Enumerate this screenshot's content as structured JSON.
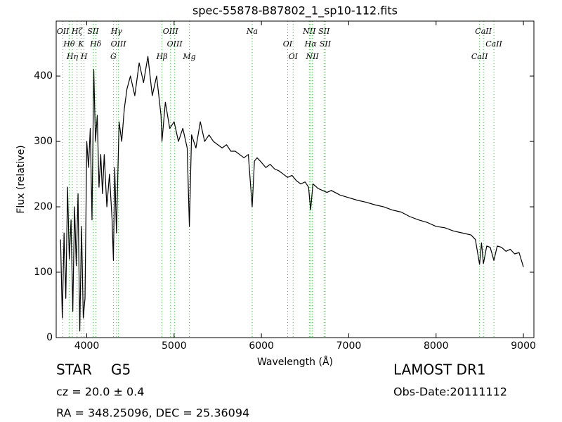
{
  "chart_data": {
    "type": "line",
    "title": "spec-55878-B87802_1_sp10-112.fits",
    "xlabel": "Wavelength (Å)",
    "ylabel": "Flux (relative)",
    "xlim": [
      3650,
      9120
    ],
    "ylim": [
      0,
      484
    ],
    "xticks": [
      4000,
      5000,
      6000,
      7000,
      8000,
      9000
    ],
    "yticks": [
      0,
      100,
      200,
      300,
      400
    ],
    "line_color": "#4caf50",
    "lines": [
      {
        "x": 3727,
        "label": "OII"
      },
      {
        "x": 3798,
        "label": "Hθ"
      },
      {
        "x": 3835,
        "label": "Hη"
      },
      {
        "x": 3889,
        "label": "Hζ"
      },
      {
        "x": 3934,
        "label": "K"
      },
      {
        "x": 3969,
        "label": "H"
      },
      {
        "x": 4072,
        "label": "SII"
      },
      {
        "x": 4102,
        "label": "Hδ"
      },
      {
        "x": 4305,
        "label": "G"
      },
      {
        "x": 4340,
        "label": "Hγ"
      },
      {
        "x": 4363,
        "label": "OIII"
      },
      {
        "x": 4861,
        "label": "Hβ"
      },
      {
        "x": 4959,
        "label": "OIII"
      },
      {
        "x": 5007,
        "label": "OIII"
      },
      {
        "x": 5175,
        "label": "Mg"
      },
      {
        "x": 5894,
        "label": "Na"
      },
      {
        "x": 6300,
        "label": "OI"
      },
      {
        "x": 6363,
        "label": "OI"
      },
      {
        "x": 6548,
        "label": "NII"
      },
      {
        "x": 6563,
        "label": "Hα"
      },
      {
        "x": 6583,
        "label": "NII"
      },
      {
        "x": 6717,
        "label": "SII"
      },
      {
        "x": 6731,
        "label": "SII"
      },
      {
        "x": 8498,
        "label": "CaII"
      },
      {
        "x": 8542,
        "label": "CaII"
      },
      {
        "x": 8662,
        "label": "CaII"
      }
    ],
    "x": [
      3700,
      3720,
      3740,
      3760,
      3780,
      3800,
      3820,
      3840,
      3860,
      3880,
      3900,
      3920,
      3940,
      3960,
      3980,
      4000,
      4020,
      4040,
      4060,
      4080,
      4100,
      4120,
      4140,
      4160,
      4180,
      4200,
      4230,
      4260,
      4290,
      4305,
      4320,
      4340,
      4370,
      4400,
      4430,
      4460,
      4500,
      4550,
      4600,
      4650,
      4700,
      4750,
      4800,
      4850,
      4861,
      4900,
      4950,
      5000,
      5050,
      5100,
      5150,
      5175,
      5200,
      5250,
      5300,
      5350,
      5400,
      5450,
      5500,
      5550,
      5600,
      5650,
      5700,
      5750,
      5800,
      5850,
      5894,
      5920,
      5950,
      6000,
      6050,
      6100,
      6150,
      6200,
      6250,
      6300,
      6350,
      6400,
      6450,
      6500,
      6540,
      6563,
      6590,
      6650,
      6700,
      6750,
      6800,
      6900,
      7000,
      7100,
      7200,
      7300,
      7400,
      7500,
      7600,
      7700,
      7800,
      7900,
      8000,
      8100,
      8200,
      8300,
      8400,
      8450,
      8498,
      8520,
      8542,
      8580,
      8620,
      8662,
      8700,
      8750,
      8800,
      8850,
      8900,
      8950,
      9000
    ],
    "series": [
      {
        "color": "#000000",
        "values": [
          150,
          30,
          160,
          60,
          230,
          120,
          180,
          40,
          200,
          110,
          220,
          10,
          170,
          30,
          60,
          300,
          260,
          320,
          180,
          410,
          300,
          340,
          230,
          280,
          220,
          280,
          200,
          250,
          180,
          118,
          260,
          160,
          330,
          300,
          350,
          380,
          400,
          370,
          420,
          390,
          430,
          370,
          400,
          340,
          300,
          360,
          320,
          330,
          300,
          320,
          290,
          170,
          310,
          290,
          330,
          300,
          310,
          300,
          295,
          290,
          295,
          285,
          285,
          280,
          275,
          280,
          200,
          270,
          275,
          268,
          260,
          265,
          258,
          255,
          250,
          245,
          248,
          240,
          235,
          238,
          230,
          195,
          235,
          228,
          225,
          222,
          225,
          218,
          214,
          210,
          207,
          203,
          200,
          195,
          192,
          185,
          180,
          176,
          170,
          168,
          163,
          160,
          157,
          150,
          112,
          145,
          113,
          140,
          138,
          118,
          140,
          138,
          132,
          135,
          128,
          130,
          108
        ]
      }
    ]
  },
  "info": {
    "class": "STAR",
    "subclass": "G5",
    "cz": "cz = 20.0 ± 0.4",
    "coords": "RA = 348.25096, DEC = 25.36094",
    "survey": "LAMOST DR1",
    "obs_date": "Obs-Date:20111112"
  }
}
